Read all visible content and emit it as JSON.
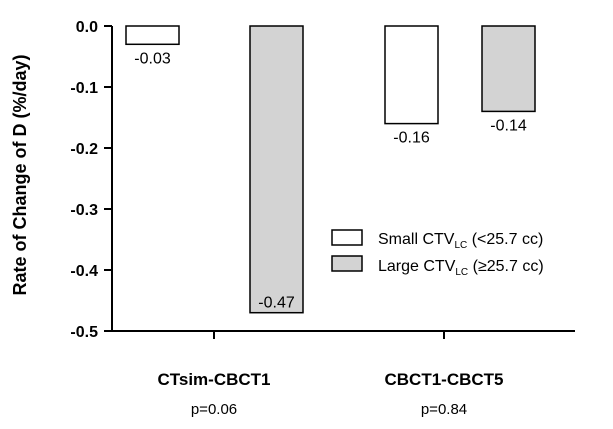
{
  "chart_data": {
    "type": "bar",
    "ylabel": "Rate of Change of D (%/day)",
    "ylim": [
      -0.5,
      0.0
    ],
    "yticks": [
      "0.0",
      "-0.1",
      "-0.2",
      "-0.3",
      "-0.4",
      "-0.5"
    ],
    "ytick_values": [
      0.0,
      -0.1,
      -0.2,
      -0.3,
      -0.4,
      -0.5
    ],
    "categories": [
      "CTsim-CBCT1",
      "CBCT1-CBCT5"
    ],
    "p_values": [
      "p=0.06",
      "p=0.84"
    ],
    "series": [
      {
        "name_main": "Small CTV",
        "name_sub": "LC",
        "name_tail": " (<25.7 cc)",
        "color": "#ffffff",
        "values": [
          -0.03,
          -0.16
        ],
        "labels": [
          "-0.03",
          "-0.16"
        ]
      },
      {
        "name_main": "Large CTV",
        "name_sub": "LC",
        "name_tail": " (≥25.7 cc)",
        "color": "#d3d3d3",
        "values": [
          -0.47,
          -0.14
        ],
        "labels": [
          "-0.47",
          "-0.14"
        ]
      }
    ],
    "grid": false,
    "legend_position": "right"
  }
}
